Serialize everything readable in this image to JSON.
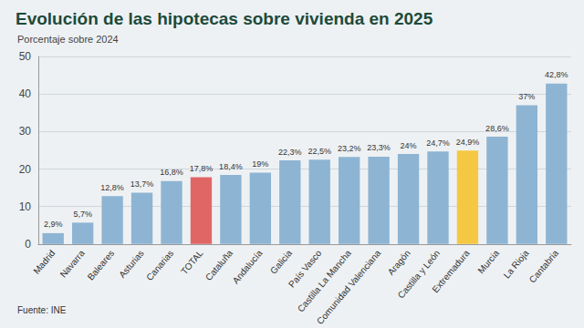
{
  "chart_data": {
    "type": "bar",
    "title": "Evolución de las hipotecas sobre vivienda en 2025",
    "subtitle": "Porcentaje sobre 2024",
    "annotations": [
      "Fuente: INE"
    ],
    "categories": [
      "Madrid",
      "Navarra",
      "Baleares",
      "Asturias",
      "Canarias",
      "TOTAL",
      "Cataluña",
      "Andalucía",
      "Galicia",
      "País Vasco",
      "Castilla La Mancha",
      "Comunidad Valenciana",
      "Aragón",
      "Castilla y León",
      "Extremadura",
      "Murcia",
      "La Rioja",
      "Cantabria"
    ],
    "values": [
      2.9,
      5.7,
      12.8,
      13.7,
      16.8,
      17.8,
      18.4,
      19,
      22.3,
      22.5,
      23.2,
      23.3,
      24,
      24.7,
      24.9,
      28.6,
      37,
      42.8
    ],
    "value_labels": [
      "2,9%",
      "5,7%",
      "12,8%",
      "13,7%",
      "16,8%",
      "17,8%",
      "18,4%",
      "19%",
      "22,3%",
      "22,5%",
      "23,2%",
      "23,3%",
      "24%",
      "24,7%",
      "24,9%",
      "28,6%",
      "37%",
      "42,8%"
    ],
    "colors": [
      "#8db4d3",
      "#8db4d3",
      "#8db4d3",
      "#8db4d3",
      "#8db4d3",
      "#e06666",
      "#8db4d3",
      "#8db4d3",
      "#8db4d3",
      "#8db4d3",
      "#8db4d3",
      "#8db4d3",
      "#8db4d3",
      "#8db4d3",
      "#f4c842",
      "#8db4d3",
      "#8db4d3",
      "#8db4d3"
    ],
    "ylim": [
      0,
      50
    ],
    "yticks": [
      0,
      10,
      20,
      30,
      40,
      50
    ],
    "grid": true,
    "data_labels": true
  }
}
